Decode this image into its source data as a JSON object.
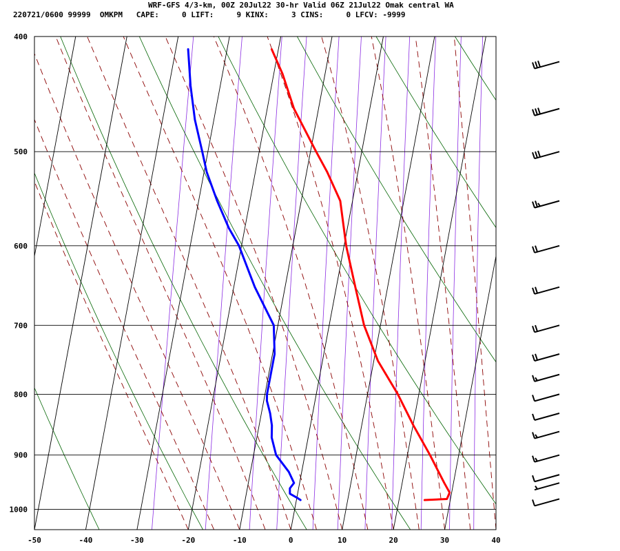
{
  "header": {
    "title": "WRF-GFS 4/3-km, 00Z 20Jul22 30-hr Valid 06Z 21Jul22 Omak central WA",
    "indices": "220721/0600 99999  OMKPM   CAPE:     0 LIFT:     9 KINX:     3 CINS:     0 LFCV: -9999"
  },
  "chart_data": {
    "type": "line",
    "title": "WRF-GFS 4/3-km, 00Z 20Jul22 30-hr Valid 06Z 21Jul22 Omak central WA",
    "xlabel": "",
    "ylabel": "",
    "xlim": [
      -50,
      40
    ],
    "ylim": [
      1040,
      400
    ],
    "y_scale": "log-pressure",
    "grid": true,
    "x_ticks": [
      "-50",
      "-40",
      "-30",
      "-20",
      "-10",
      "0",
      "10",
      "20",
      "30",
      "40"
    ],
    "y_ticks": [
      "400",
      "500",
      "600",
      "700",
      "800",
      "900",
      "1000"
    ],
    "colors": {
      "temperature": "#ff0000",
      "dewpoint": "#0000ff",
      "dry_adiabat": "#006400",
      "moist_adiabat": "#8b0000",
      "mixing_ratio": "#8a2be2",
      "grid": "#000000",
      "wind_barb": "#000000"
    },
    "series": [
      {
        "key": "temperature",
        "pressure": [
          982,
          980,
          968,
          950,
          930,
          900,
          850,
          800,
          750,
          700,
          650,
          600,
          550,
          520,
          500,
          460,
          430,
          410
        ],
        "value": [
          25.0,
          29.3,
          29.6,
          28.2,
          26.7,
          24.4,
          20.1,
          15.9,
          10.8,
          6.8,
          3.7,
          0.4,
          -2.4,
          -6.0,
          -8.9,
          -14.8,
          -18.3,
          -21.3
        ]
      },
      {
        "key": "dewpoint",
        "pressure": [
          982,
          978,
          970,
          960,
          950,
          930,
          900,
          870,
          850,
          830,
          810,
          800,
          750,
          740,
          700,
          650,
          630,
          600,
          580,
          550,
          520,
          500,
          470,
          440,
          410
        ],
        "value": [
          0.8,
          0.1,
          -1.5,
          -1.7,
          -1.1,
          -2.5,
          -5.6,
          -7.1,
          -7.5,
          -8.3,
          -9.4,
          -9.6,
          -9.6,
          -9.6,
          -10.8,
          -15.9,
          -17.7,
          -20.5,
          -23.1,
          -26.4,
          -29.5,
          -31.1,
          -33.7,
          -35.8,
          -37.6
        ]
      }
    ],
    "wind_barbs": [
      {
        "pressure": 980,
        "knots": 10
      },
      {
        "pressure": 950,
        "knots": 5
      },
      {
        "pressure": 935,
        "knots": 10
      },
      {
        "pressure": 900,
        "knots": 15
      },
      {
        "pressure": 860,
        "knots": 15
      },
      {
        "pressure": 830,
        "knots": 10
      },
      {
        "pressure": 800,
        "knots": 10
      },
      {
        "pressure": 770,
        "knots": 15
      },
      {
        "pressure": 740,
        "knots": 20
      },
      {
        "pressure": 700,
        "knots": 20
      },
      {
        "pressure": 650,
        "knots": 20
      },
      {
        "pressure": 600,
        "knots": 20
      },
      {
        "pressure": 550,
        "knots": 25
      },
      {
        "pressure": 500,
        "knots": 30
      },
      {
        "pressure": 460,
        "knots": 30
      },
      {
        "pressure": 420,
        "knots": 30
      }
    ]
  }
}
